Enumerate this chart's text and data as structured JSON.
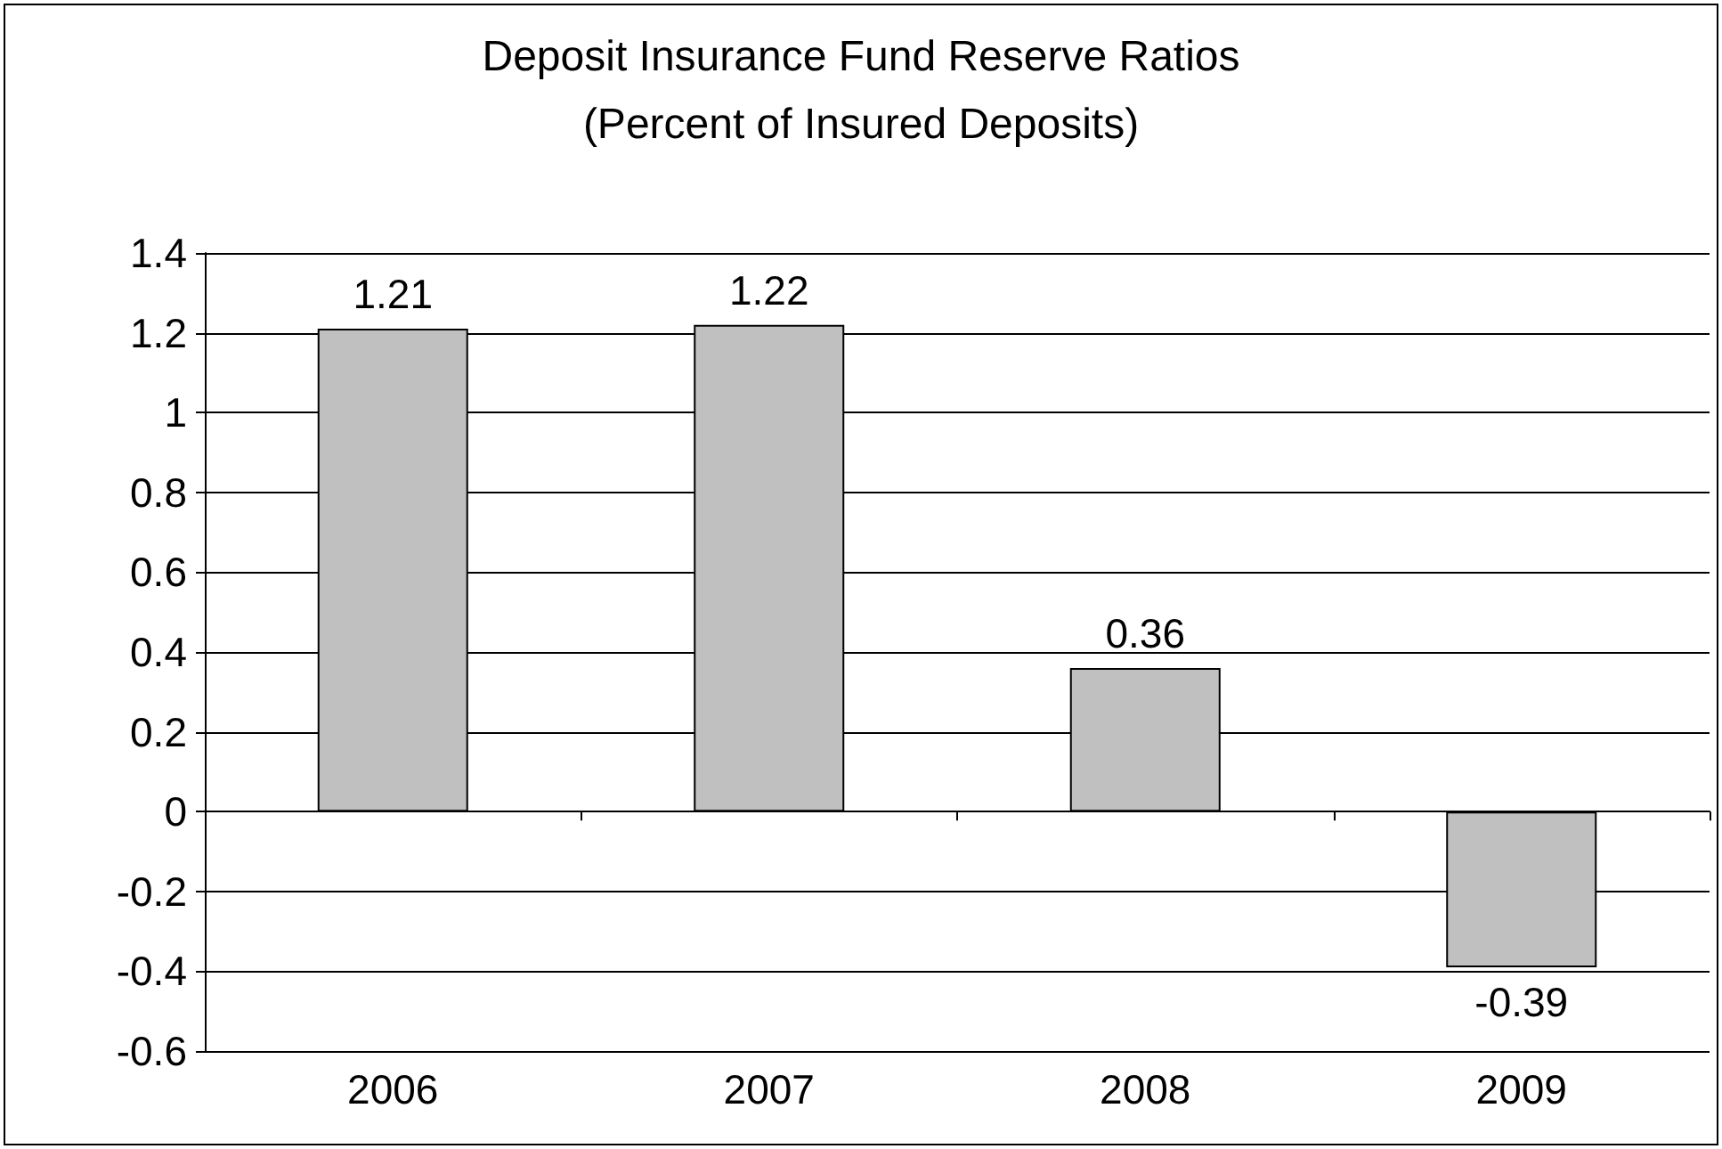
{
  "chart_data": {
    "type": "bar",
    "title": "Deposit Insurance Fund Reserve Ratios",
    "subtitle": "(Percent of Insured Deposits)",
    "categories": [
      "2006",
      "2007",
      "2008",
      "2009"
    ],
    "values": [
      1.21,
      1.22,
      0.36,
      -0.39
    ],
    "color": "#c0c0c0",
    "ylim": [
      -0.6,
      1.4
    ],
    "yticks": [
      -0.6,
      -0.4,
      -0.2,
      0,
      0.2,
      0.4,
      0.6,
      0.8,
      1,
      1.2,
      1.4
    ],
    "grid": "y",
    "data_labels": true
  }
}
